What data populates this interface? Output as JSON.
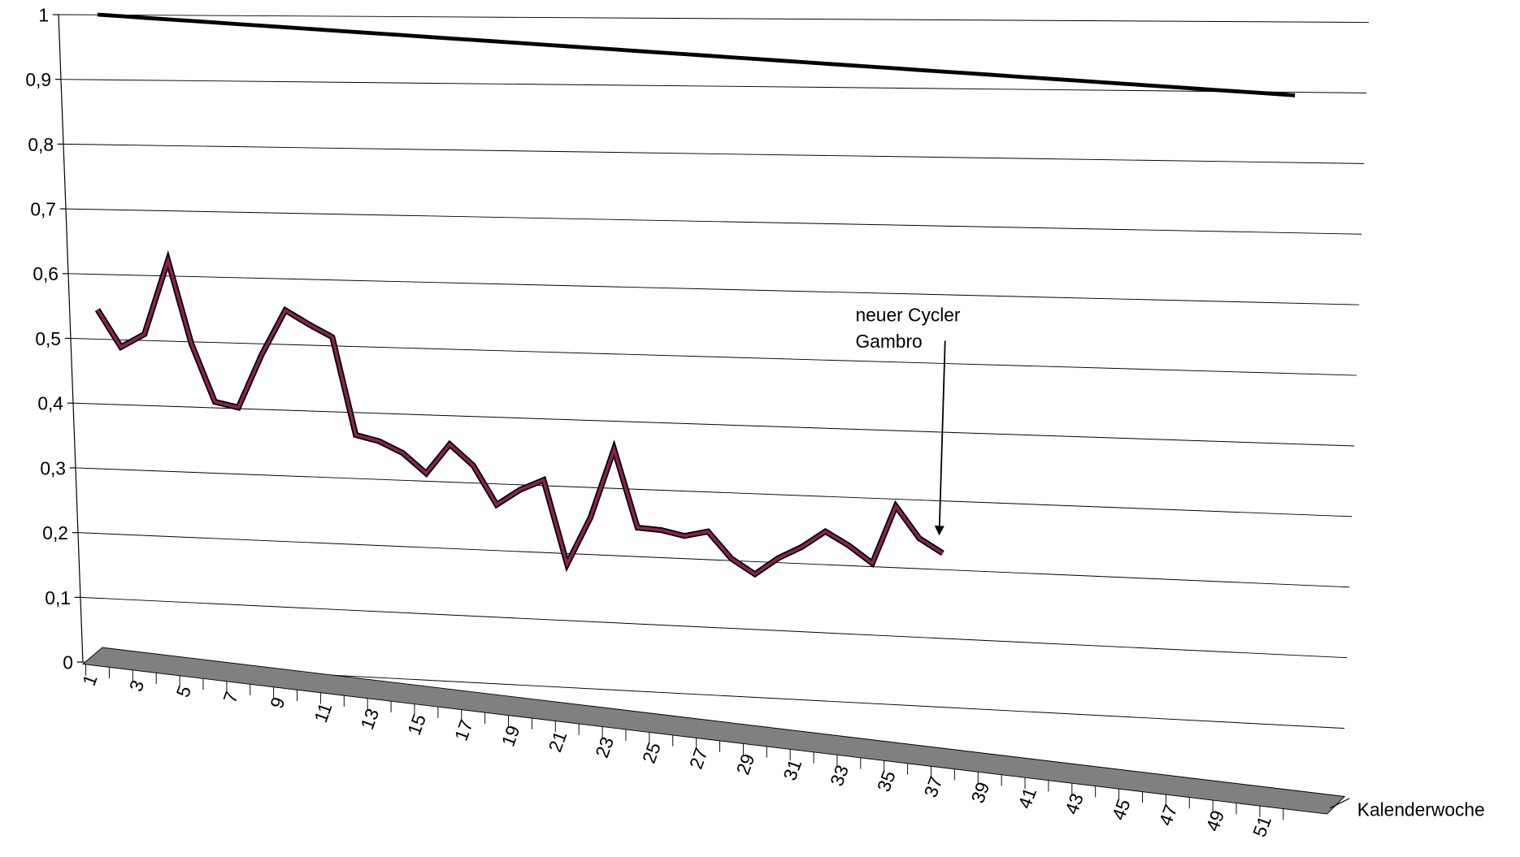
{
  "chart_data": {
    "type": "line3d",
    "x_label": "Kalenderwoche",
    "annotation": [
      "neuer Cycler",
      "Gambro"
    ],
    "categories": [
      "1",
      null,
      "3",
      null,
      "5",
      null,
      "7",
      null,
      "9",
      null,
      "11",
      null,
      "13",
      null,
      "15",
      null,
      "17",
      null,
      "19",
      null,
      "21",
      null,
      "23",
      null,
      "25",
      null,
      "27",
      null,
      "29",
      null,
      "31",
      null,
      "33",
      null,
      "35",
      null,
      "37",
      null,
      "39",
      null,
      "41",
      null,
      "43",
      null,
      "45",
      null,
      "47",
      null,
      "49",
      null,
      "51",
      null
    ],
    "ylim": [
      0,
      1
    ],
    "yticks": [
      0,
      {
        "value": 0.1,
        "label": "0,1"
      },
      {
        "value": 0.2,
        "label": "0,2"
      },
      {
        "value": 0.3,
        "label": "0,3"
      },
      {
        "value": 0.4,
        "label": "0,4"
      },
      {
        "value": 0.5,
        "label": "0,5"
      },
      {
        "value": 0.6,
        "label": "0,6"
      },
      {
        "value": 0.7,
        "label": "0,7"
      },
      {
        "value": 0.8,
        "label": "0,8"
      },
      {
        "value": 0.9,
        "label": "0,9"
      },
      1
    ],
    "grid": true,
    "floor_color": "#808080",
    "series": [
      {
        "color": "#000000",
        "values": [
          1,
          1,
          1,
          1,
          1,
          1,
          1,
          1,
          1,
          1,
          1,
          1,
          1,
          1,
          1,
          1,
          1,
          1,
          1,
          1,
          1,
          1,
          1,
          1,
          1,
          1,
          1,
          1,
          1,
          1,
          1,
          1,
          1,
          1,
          1,
          1,
          1,
          1,
          1,
          1,
          1,
          1,
          1,
          1,
          1,
          1,
          1,
          1,
          1,
          1,
          1,
          1
        ]
      },
      {
        "color": "#8b2252",
        "values": [
          0.547,
          0.493,
          0.516,
          0.632,
          0.508,
          0.423,
          0.418,
          0.502,
          0.572,
          0.554,
          0.538,
          0.394,
          0.388,
          0.374,
          0.347,
          0.394,
          0.366,
          0.311,
          0.337,
          0.355,
          0.234,
          0.307,
          0.411,
          0.299,
          0.299,
          0.294,
          0.304,
          0.268,
          0.249,
          0.276,
          0.296,
          0.322,
          0.305,
          0.283,
          0.369,
          0.326,
          0.308,
          null,
          null,
          null,
          null,
          null,
          null,
          null,
          null,
          null,
          null,
          null,
          null,
          null,
          null,
          null
        ]
      }
    ]
  }
}
